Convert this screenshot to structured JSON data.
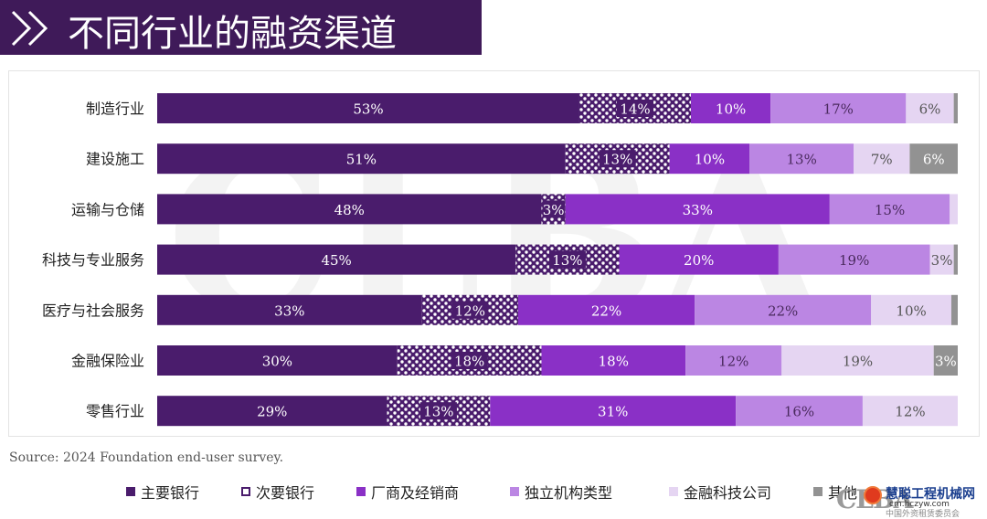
{
  "title": "不同行业的融资渠道",
  "source": "Source: 2024 Foundation end-user survey.",
  "watermark": {
    "logo_text": "CLBA",
    "site_name": "慧聪工程机械网",
    "site_url": "cm.hczyw.com",
    "org_name": "中国外资租赁委员会"
  },
  "colors": {
    "title_bg": "#3f1a59",
    "series": [
      "#4a1c6c",
      "#4a1c6c",
      "#8a30c6",
      "#bb86e3",
      "#e5d5f2",
      "#929292"
    ],
    "text_dark": "#222222"
  },
  "chart_data": {
    "type": "bar",
    "orientation": "horizontal",
    "stacked": true,
    "percent": true,
    "xlim": [
      0,
      100
    ],
    "grid": false,
    "legend_position": "bottom",
    "categories": [
      "制造行业",
      "建设施工",
      "运输与仓储",
      "科技与专业服务",
      "医疗与社会服务",
      "金融保险业",
      "零售行业"
    ],
    "series": [
      {
        "name": "主要银行",
        "pattern": "solid",
        "values": [
          53,
          51,
          48,
          45,
          33,
          30,
          29
        ]
      },
      {
        "name": "次要银行",
        "pattern": "checker",
        "values": [
          14,
          13,
          3,
          13,
          12,
          18,
          13
        ]
      },
      {
        "name": "厂商及经销商",
        "pattern": "solid",
        "values": [
          10,
          10,
          33,
          20,
          22,
          18,
          31
        ]
      },
      {
        "name": "独立机构类型",
        "pattern": "solid",
        "values": [
          17,
          13,
          15,
          19,
          22,
          12,
          16
        ]
      },
      {
        "name": "金融科技公司",
        "pattern": "solid",
        "values": [
          6,
          7,
          1,
          3,
          10,
          19,
          12
        ]
      },
      {
        "name": "其他",
        "pattern": "solid",
        "values": [
          0.5,
          6,
          0,
          0.5,
          0.8,
          3,
          0
        ]
      }
    ],
    "data_labels": [
      [
        "53%",
        "14%",
        "10%",
        "17%",
        "6%",
        ""
      ],
      [
        "51%",
        "13%",
        "10%",
        "13%",
        "7%",
        "6%"
      ],
      [
        "48%",
        "3%",
        "33%",
        "15%",
        "",
        ""
      ],
      [
        "45%",
        "13%",
        "20%",
        "19%",
        "3%",
        ""
      ],
      [
        "33%",
        "12%",
        "22%",
        "22%",
        "10%",
        ""
      ],
      [
        "30%",
        "18%",
        "18%",
        "12%",
        "19%",
        "3%"
      ],
      [
        "29%",
        "13%",
        "31%",
        "16%",
        "12%",
        ""
      ]
    ]
  }
}
